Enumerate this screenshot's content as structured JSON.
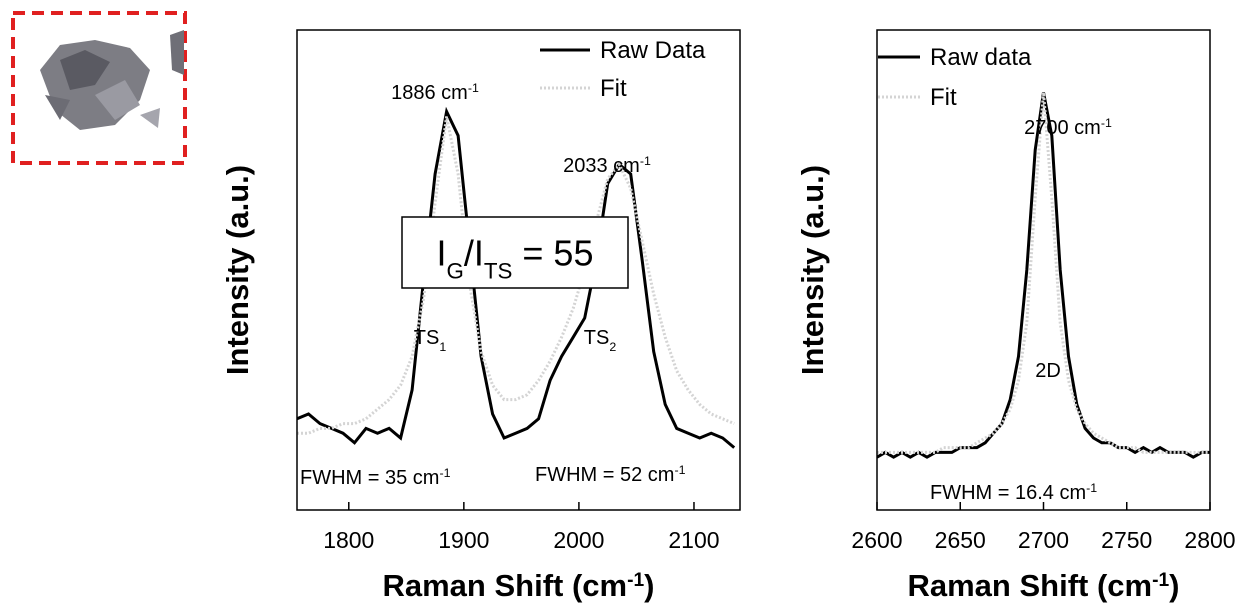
{
  "chart_data": [
    {
      "type": "line",
      "xlabel": [
        {
          "text": "Raman Shift (cm"
        },
        {
          "text": "-1",
          "style": "sup"
        },
        {
          "text": ")"
        }
      ],
      "ylabel": "Intensity (a.u.)",
      "x": [
        1755,
        1765,
        1775,
        1785,
        1795,
        1805,
        1815,
        1825,
        1835,
        1845,
        1855,
        1865,
        1875,
        1885,
        1895,
        1905,
        1915,
        1925,
        1935,
        1945,
        1955,
        1965,
        1975,
        1985,
        1995,
        2005,
        2015,
        2025,
        2035,
        2045,
        2055,
        2065,
        2075,
        2085,
        2095,
        2105,
        2115,
        2125,
        2135
      ],
      "series": [
        {
          "name": "Raw Data",
          "color": "#000000",
          "linestyle": "solid",
          "values": [
            19,
            20,
            18,
            17,
            16,
            14,
            17,
            16,
            17,
            15,
            25,
            48,
            70,
            83,
            78,
            55,
            32,
            20,
            15,
            16,
            17,
            19,
            27,
            32,
            36,
            40,
            52,
            68,
            72,
            70,
            52,
            33,
            22,
            17,
            16,
            15,
            16,
            15,
            13
          ]
        },
        {
          "name": "Fit",
          "color": "#d4d4d4",
          "linestyle": "dotted",
          "values": [
            16,
            16,
            17,
            17,
            18,
            18,
            19,
            21,
            23,
            26,
            32,
            44,
            64,
            82,
            70,
            47,
            33,
            26,
            23,
            23,
            24,
            27,
            31,
            36,
            42,
            50,
            60,
            69,
            72,
            67,
            56,
            45,
            36,
            29,
            25,
            22,
            20,
            19,
            18
          ]
        }
      ],
      "xlim": [
        1755,
        2140
      ],
      "ylim": [
        0,
        100
      ],
      "xticks": [
        1800,
        1900,
        2000,
        2100
      ],
      "annotations": [
        {
          "segments": [
            {
              "text": "1886 cm"
            },
            {
              "text": "-1",
              "style": "sup"
            }
          ]
        },
        {
          "segments": [
            {
              "text": "2033 cm"
            },
            {
              "text": "-1",
              "style": "sup"
            }
          ]
        },
        {
          "segments": [
            {
              "text": "I"
            },
            {
              "text": "G",
              "style": "sub"
            },
            {
              "text": "/I"
            },
            {
              "text": "TS",
              "style": "sub"
            },
            {
              "text": " = 55"
            }
          ],
          "boxed": true
        },
        {
          "segments": [
            {
              "text": "TS"
            },
            {
              "text": "1",
              "style": "sub"
            }
          ]
        },
        {
          "segments": [
            {
              "text": "TS"
            },
            {
              "text": "2",
              "style": "sub"
            }
          ]
        },
        {
          "segments": [
            {
              "text": "FWHM = 35 cm"
            },
            {
              "text": "-1",
              "style": "sup"
            }
          ]
        },
        {
          "segments": [
            {
              "text": "FWHM = 52 cm"
            },
            {
              "text": "-1",
              "style": "sup"
            }
          ]
        }
      ]
    },
    {
      "type": "line",
      "xlabel": [
        {
          "text": "Raman Shift (cm"
        },
        {
          "text": "-1",
          "style": "sup"
        },
        {
          "text": ")"
        }
      ],
      "ylabel": "Intensity (a.u.)",
      "x": [
        2600,
        2605,
        2610,
        2615,
        2620,
        2625,
        2630,
        2635,
        2640,
        2645,
        2650,
        2655,
        2660,
        2665,
        2670,
        2675,
        2680,
        2685,
        2690,
        2695,
        2700,
        2705,
        2710,
        2715,
        2720,
        2725,
        2730,
        2735,
        2740,
        2745,
        2750,
        2755,
        2760,
        2765,
        2770,
        2775,
        2780,
        2785,
        2790,
        2795,
        2800
      ],
      "series": [
        {
          "name": "Raw data",
          "color": "#000000",
          "linestyle": "solid",
          "values": [
            11,
            12,
            11,
            12,
            11,
            12,
            11,
            12,
            12,
            12,
            13,
            13,
            13,
            14,
            16,
            18,
            23,
            32,
            50,
            75,
            87,
            78,
            50,
            32,
            22,
            17,
            15,
            14,
            14,
            13,
            13,
            12,
            13,
            12,
            13,
            12,
            12,
            12,
            11,
            12,
            12
          ]
        },
        {
          "name": "Fit",
          "color": "#d4d4d4",
          "linestyle": "dotted",
          "values": [
            12,
            12,
            12,
            12,
            12,
            12,
            12,
            12,
            13,
            13,
            13,
            13,
            14,
            15,
            16,
            18,
            21,
            27,
            39,
            65,
            87,
            65,
            39,
            27,
            21,
            18,
            16,
            15,
            14,
            13,
            13,
            13,
            12,
            12,
            12,
            12,
            12,
            12,
            12,
            12,
            12
          ]
        }
      ],
      "xlim": [
        2600,
        2800
      ],
      "ylim": [
        0,
        100
      ],
      "xticks": [
        2600,
        2650,
        2700,
        2750,
        2800
      ],
      "annotations": [
        {
          "segments": [
            {
              "text": "2700 cm"
            },
            {
              "text": "-1",
              "style": "sup"
            }
          ]
        },
        {
          "segments": [
            {
              "text": "2D"
            }
          ]
        },
        {
          "segments": [
            {
              "text": "FWHM = 16.4 cm"
            },
            {
              "text": "-1",
              "style": "sup"
            }
          ]
        }
      ]
    }
  ]
}
